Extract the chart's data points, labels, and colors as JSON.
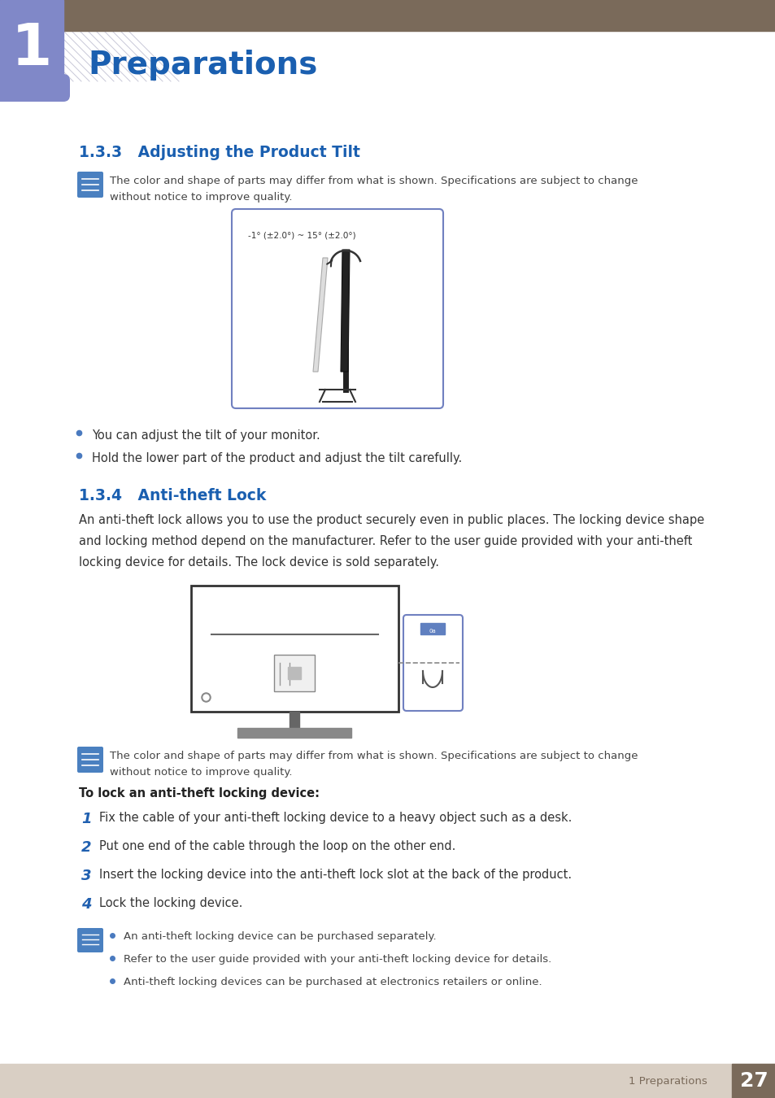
{
  "page_bg": "#ffffff",
  "header_bar_color": "#7a6a5a",
  "header_number_box_color": "#8088c8",
  "header_number": "1",
  "header_title": "Preparations",
  "header_title_color": "#1a5fb0",
  "section133_title": "1.3.3   Adjusting the Product Tilt",
  "section134_title": "1.3.4   Anti-theft Lock",
  "section_title_color": "#1a5fb0",
  "note_icon_color": "#4a7abf",
  "note_text1": "The color and shape of parts may differ from what is shown. Specifications are subject to change\nwithout notice to improve quality.",
  "note_text2": "The color and shape of parts may differ from what is shown. Specifications are subject to change\nwithout notice to improve quality.",
  "tilt_label": "-1° (±2.0°) ~ 15° (±2.0°)",
  "bullet_color": "#4a7abf",
  "bullet1": "You can adjust the tilt of your monitor.",
  "bullet2": "Hold the lower part of the product and adjust the tilt carefully.",
  "antitheft_para_lines": [
    "An anti-theft lock allows you to use the product securely even in public places. The locking device shape",
    "and locking method depend on the manufacturer. Refer to the user guide provided with your anti-theft",
    "locking device for details. The lock device is sold separately."
  ],
  "lock_steps_title": "To lock an anti-theft locking device:",
  "lock_steps": [
    [
      "1",
      "Fix the cable of your anti-theft locking device to a heavy object such as a desk."
    ],
    [
      "2",
      "Put one end of the cable through the loop on the other end."
    ],
    [
      "3",
      "Insert the locking device into the anti-theft lock slot at the back of the product."
    ],
    [
      "4",
      "Lock the locking device."
    ]
  ],
  "note_bullets": [
    "An anti-theft locking device can be purchased separately.",
    "Refer to the user guide provided with your anti-theft locking device for details.",
    "Anti-theft locking devices can be purchased at electronics retailers or online."
  ],
  "footer_bg": "#d9cfc4",
  "footer_text": "1 Preparations",
  "footer_page": "27",
  "footer_page_bg": "#7a6a5a"
}
